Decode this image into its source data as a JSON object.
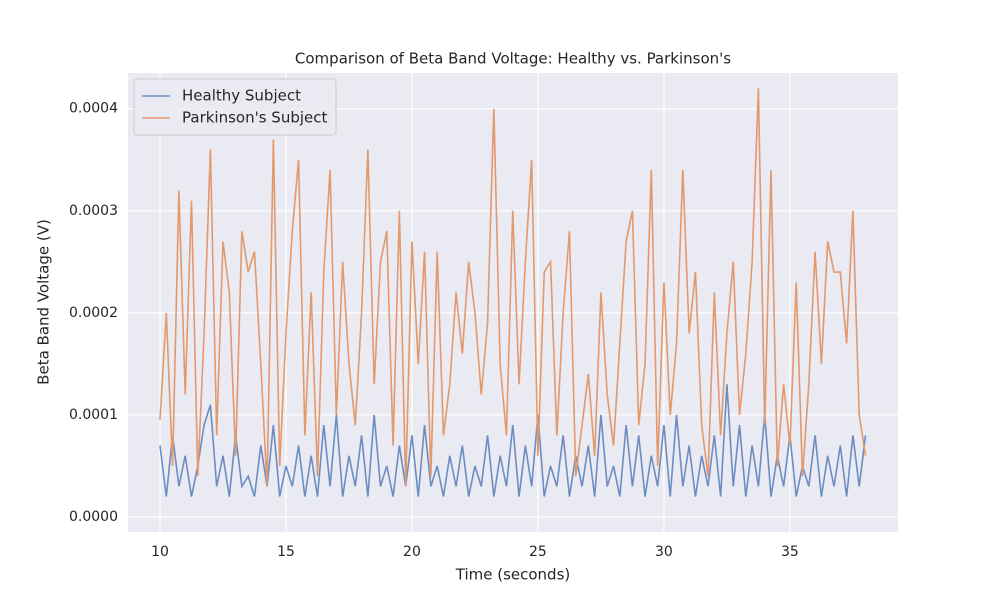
{
  "chart_data": {
    "type": "line",
    "title": "Comparison of Beta Band Voltage: Healthy vs. Parkinson's",
    "x_label": "Time (seconds)",
    "y_label": "Beta Band Voltage (V)",
    "x": [
      10,
      10.25,
      10.5,
      10.75,
      11,
      11.25,
      11.5,
      11.75,
      12,
      12.25,
      12.5,
      12.75,
      13,
      13.25,
      13.5,
      13.75,
      14,
      14.25,
      14.5,
      14.75,
      15,
      15.25,
      15.5,
      15.75,
      16,
      16.25,
      16.5,
      16.75,
      17,
      17.25,
      17.5,
      17.75,
      18,
      18.25,
      18.5,
      18.75,
      19,
      19.25,
      19.5,
      19.75,
      20,
      20.25,
      20.5,
      20.75,
      21,
      21.25,
      21.5,
      21.75,
      22,
      22.25,
      22.5,
      22.75,
      23,
      23.25,
      23.5,
      23.75,
      24,
      24.25,
      24.5,
      24.75,
      25,
      25.25,
      25.5,
      25.75,
      26,
      26.25,
      26.5,
      26.75,
      27,
      27.25,
      27.5,
      27.75,
      28,
      28.25,
      28.5,
      28.75,
      29,
      29.25,
      29.5,
      29.75,
      30,
      30.25,
      30.5,
      30.75,
      31,
      31.25,
      31.5,
      31.75,
      32,
      32.25,
      32.5,
      32.75,
      33,
      33.25,
      33.5,
      33.75,
      34,
      34.25,
      34.5,
      34.75,
      35,
      35.25,
      35.5,
      35.75,
      36,
      36.25,
      36.5,
      36.75,
      37,
      37.25,
      37.5,
      37.75,
      38
    ],
    "series": [
      {
        "name": "Healthy Subject",
        "color": "#6d8dc2",
        "values": [
          7e-05,
          2e-05,
          8e-05,
          3e-05,
          6e-05,
          2e-05,
          5e-05,
          9e-05,
          0.00011,
          3e-05,
          6e-05,
          2e-05,
          8e-05,
          3e-05,
          4e-05,
          2e-05,
          7e-05,
          3e-05,
          9e-05,
          2e-05,
          5e-05,
          3e-05,
          7e-05,
          2e-05,
          6e-05,
          2e-05,
          9e-05,
          3e-05,
          0.0001,
          2e-05,
          6e-05,
          3e-05,
          8e-05,
          2e-05,
          0.0001,
          3e-05,
          5e-05,
          2e-05,
          7e-05,
          3e-05,
          8e-05,
          2e-05,
          9e-05,
          3e-05,
          5e-05,
          2e-05,
          6e-05,
          3e-05,
          7e-05,
          2e-05,
          5e-05,
          3e-05,
          8e-05,
          2e-05,
          6e-05,
          3e-05,
          9e-05,
          2e-05,
          7e-05,
          3e-05,
          0.0001,
          2e-05,
          5e-05,
          3e-05,
          8e-05,
          2e-05,
          6e-05,
          3e-05,
          7e-05,
          2e-05,
          0.0001,
          3e-05,
          5e-05,
          2e-05,
          9e-05,
          3e-05,
          8e-05,
          2e-05,
          6e-05,
          3e-05,
          9e-05,
          2e-05,
          0.0001,
          3e-05,
          7e-05,
          2e-05,
          6e-05,
          3e-05,
          8e-05,
          2e-05,
          0.00013,
          3e-05,
          9e-05,
          2e-05,
          7e-05,
          3e-05,
          0.0001,
          2e-05,
          6e-05,
          3e-05,
          8e-05,
          2e-05,
          5e-05,
          3e-05,
          8e-05,
          2e-05,
          6e-05,
          3e-05,
          7e-05,
          2e-05,
          8e-05,
          3e-05,
          8e-05
        ]
      },
      {
        "name": "Parkinson's Subject",
        "color": "#e2996c",
        "values": [
          9.5e-05,
          0.0002,
          5e-05,
          0.00032,
          0.00012,
          0.00031,
          4e-05,
          0.00018,
          0.00036,
          8e-05,
          0.00027,
          0.00022,
          6e-05,
          0.00028,
          0.00024,
          0.00026,
          0.00015,
          3e-05,
          0.00037,
          5e-05,
          0.00018,
          0.00028,
          0.00035,
          8e-05,
          0.00022,
          4e-05,
          0.00024,
          0.00034,
          0.0001,
          0.00025,
          0.00015,
          9e-05,
          0.0002,
          0.00036,
          0.00013,
          0.00025,
          0.00028,
          7e-05,
          0.0003,
          3e-05,
          0.00027,
          0.00015,
          0.00026,
          4e-05,
          0.00026,
          8e-05,
          0.00013,
          0.00022,
          0.00016,
          0.00025,
          0.0002,
          0.00012,
          0.00019,
          0.0004,
          0.00015,
          8e-05,
          0.0003,
          0.00013,
          0.00025,
          0.00035,
          6e-05,
          0.00024,
          0.00025,
          8e-05,
          0.0002,
          0.00028,
          4e-05,
          9e-05,
          0.00014,
          6e-05,
          0.00022,
          0.00012,
          7e-05,
          0.00017,
          0.00027,
          0.0003,
          9e-05,
          0.00015,
          0.00034,
          5e-05,
          0.00023,
          0.0001,
          0.00017,
          0.00034,
          0.00018,
          0.00024,
          9e-05,
          4e-05,
          0.00022,
          8e-05,
          0.00018,
          0.00025,
          0.0001,
          0.00016,
          0.00025,
          0.00042,
          9e-05,
          0.00034,
          5e-05,
          0.00013,
          7e-05,
          0.00023,
          4e-05,
          0.00013,
          0.00026,
          0.00015,
          0.00027,
          0.00024,
          0.00024,
          0.00017,
          0.0003,
          0.0001,
          6e-05
        ]
      }
    ],
    "xlim": [
      8.73,
      39.29
    ],
    "ylim": [
      -1.47e-05,
      0.000435
    ],
    "xticks": [
      10,
      15,
      20,
      25,
      30,
      35
    ],
    "yticks": [
      {
        "value": 0,
        "label": "0.0000"
      },
      {
        "value": 0.0001,
        "label": "0.0001"
      },
      {
        "value": 0.0002,
        "label": "0.0002"
      },
      {
        "value": 0.0003,
        "label": "0.0003"
      },
      {
        "value": 0.0004,
        "label": "0.0004"
      }
    ],
    "grid": true,
    "legend": "upper left"
  }
}
